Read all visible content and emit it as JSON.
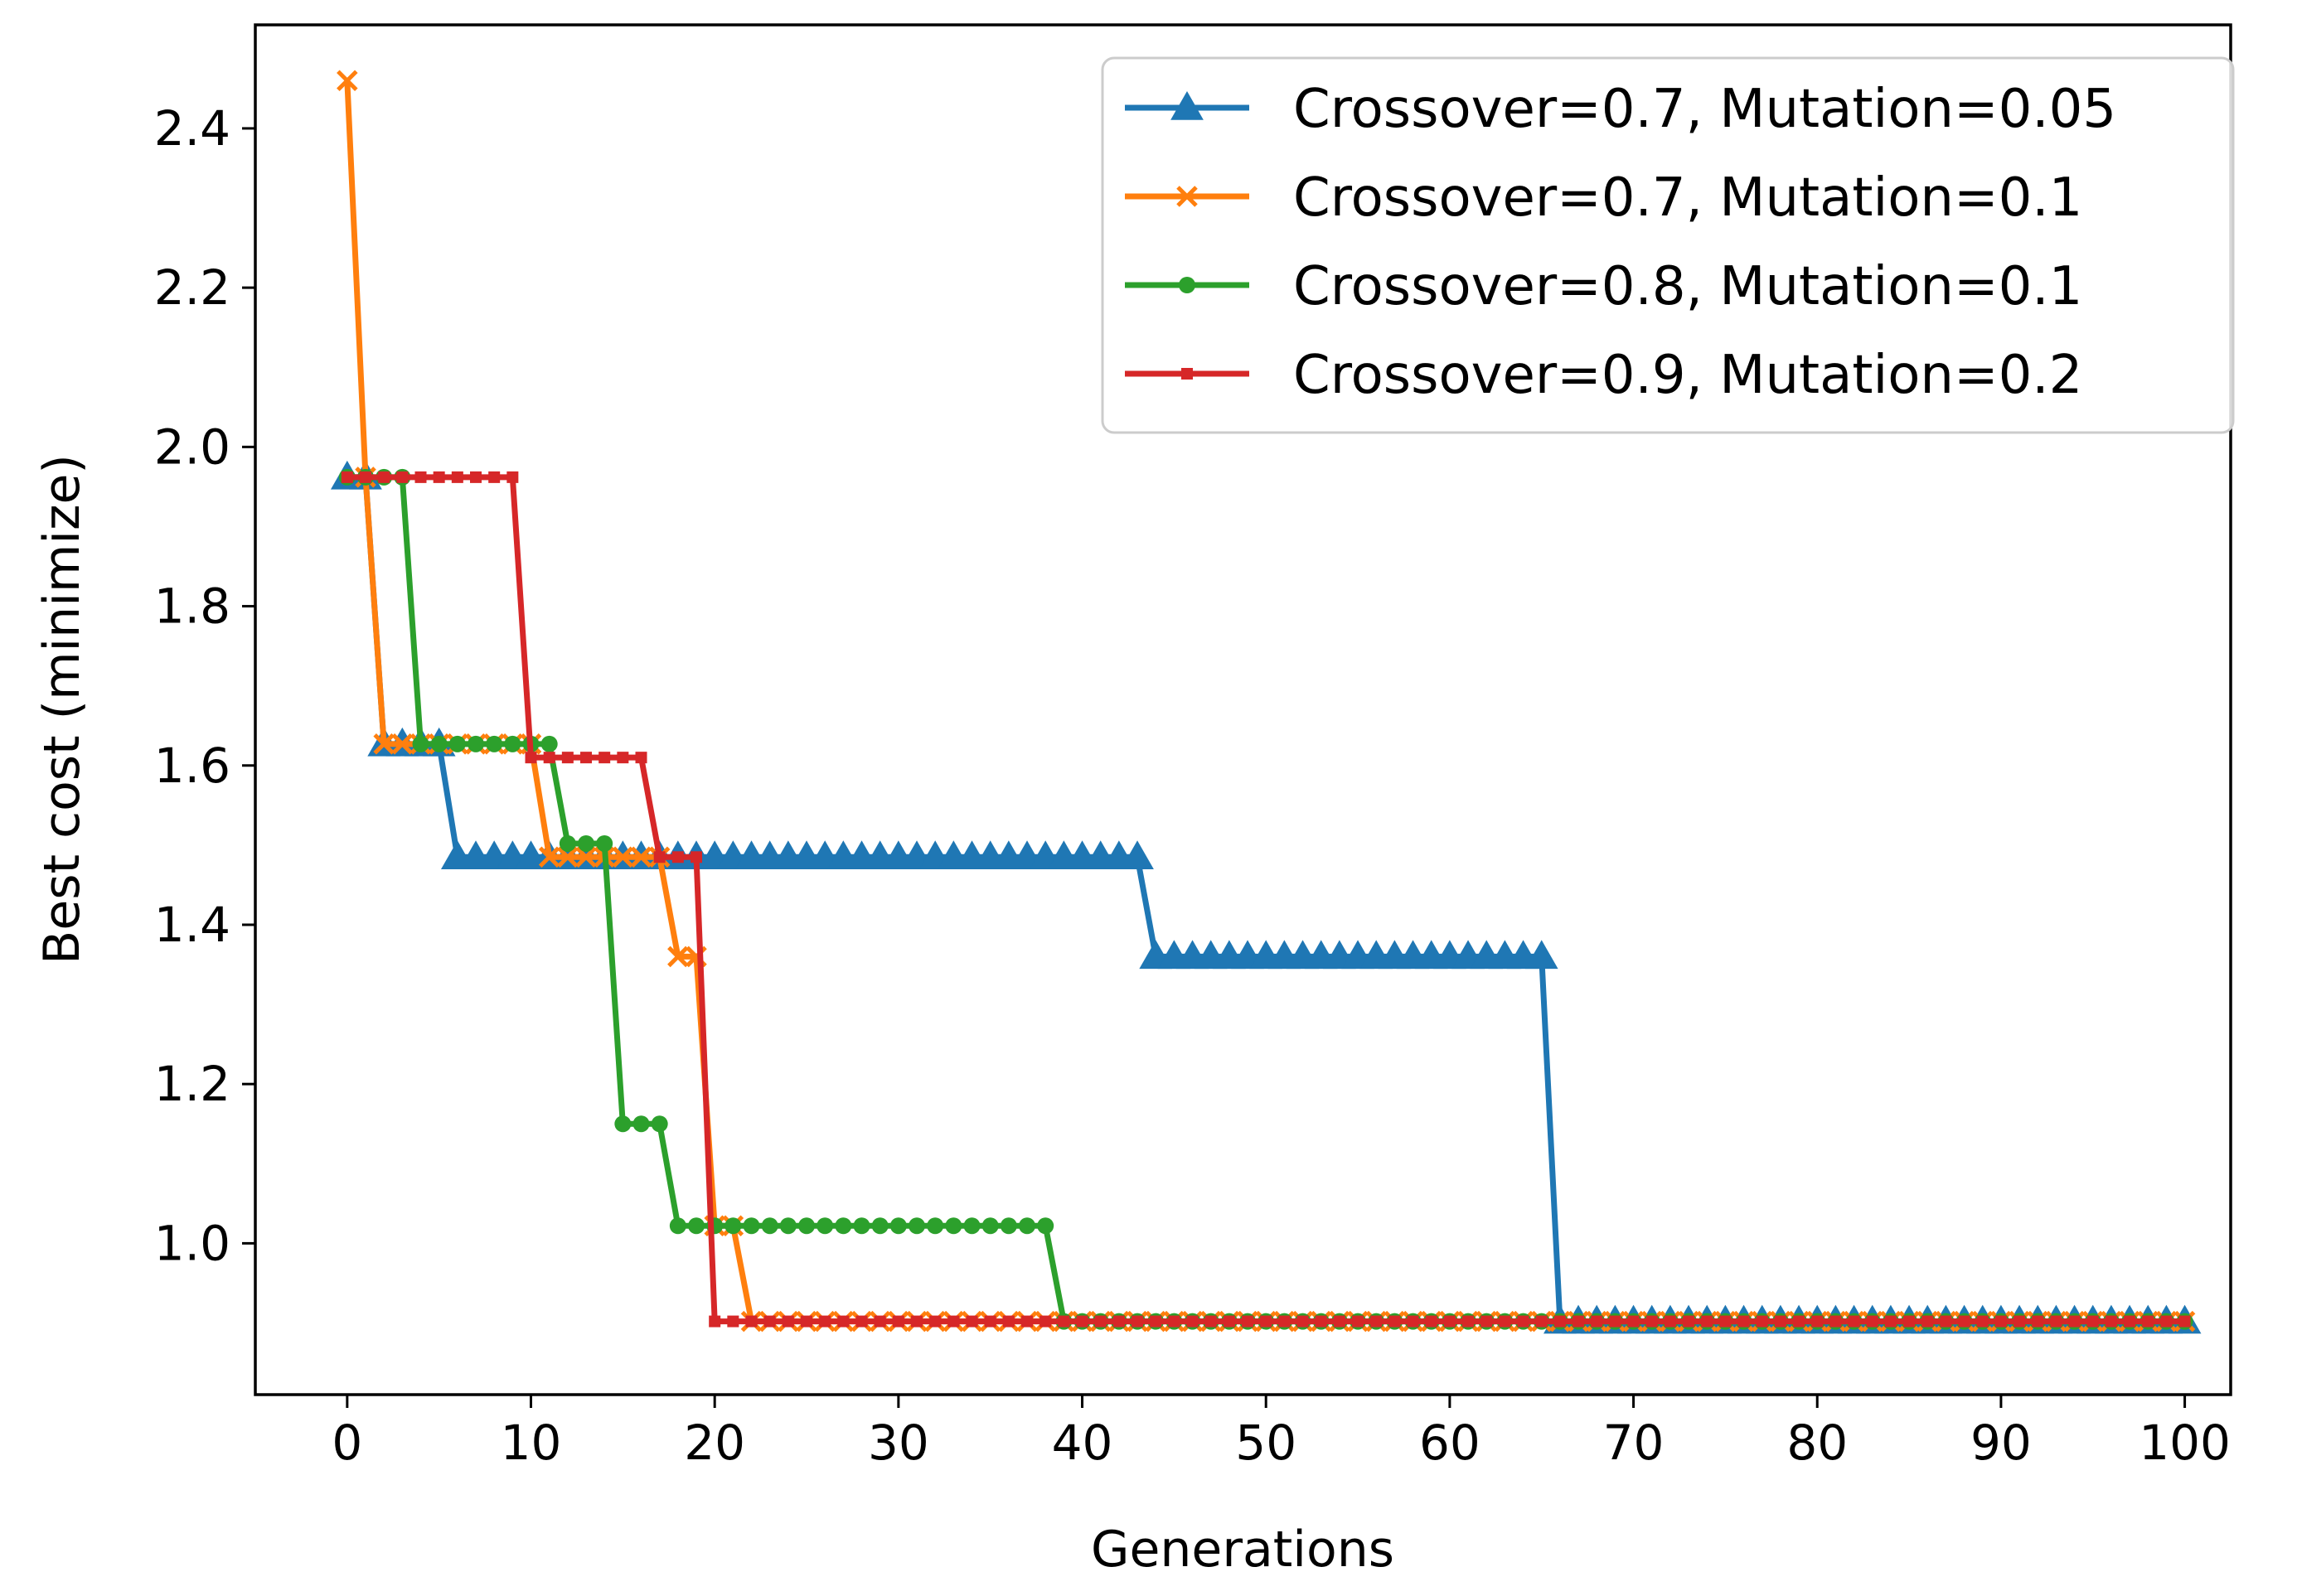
{
  "chart_data": {
    "type": "line",
    "title": "",
    "xlabel": "Generations",
    "ylabel": "Best cost (minimize)",
    "xlim": [
      -5,
      102.5
    ],
    "ylim": [
      0.81,
      2.53
    ],
    "xticks": [
      0,
      10,
      20,
      30,
      40,
      50,
      60,
      70,
      80,
      90,
      100
    ],
    "xtick_labels": [
      "0",
      "10",
      "20",
      "30",
      "40",
      "50",
      "60",
      "70",
      "80",
      "90",
      "100"
    ],
    "yticks": [
      1.0,
      1.2,
      1.4,
      1.6,
      1.8,
      2.0,
      2.2,
      2.4
    ],
    "ytick_labels": [
      "1.0",
      "1.2",
      "1.4",
      "1.6",
      "1.8",
      "2.0",
      "2.2",
      "2.4"
    ],
    "grid": false,
    "legend_position": "top-right",
    "generations": {
      "start": 0,
      "end": 100
    },
    "series": [
      {
        "name": "Crossover=0.7, Mutation=0.05",
        "color": "#1f77b4",
        "marker": "triangle",
        "steps": [
          {
            "from": 0,
            "to": 1,
            "value": 1.962
          },
          {
            "from": 2,
            "to": 5,
            "value": 1.627
          },
          {
            "from": 6,
            "to": 43,
            "value": 1.485
          },
          {
            "from": 44,
            "to": 65,
            "value": 1.36
          },
          {
            "from": 66,
            "to": 100,
            "value": 0.902
          }
        ]
      },
      {
        "name": "Crossover=0.7, Mutation=0.1",
        "color": "#ff7f0e",
        "marker": "x",
        "steps": [
          {
            "from": 0,
            "to": 0,
            "value": 2.46
          },
          {
            "from": 1,
            "to": 1,
            "value": 1.962
          },
          {
            "from": 2,
            "to": 10,
            "value": 1.627
          },
          {
            "from": 11,
            "to": 17,
            "value": 1.485
          },
          {
            "from": 18,
            "to": 19,
            "value": 1.36
          },
          {
            "from": 20,
            "to": 21,
            "value": 1.022
          },
          {
            "from": 22,
            "to": 100,
            "value": 0.902
          }
        ]
      },
      {
        "name": "Crossover=0.8, Mutation=0.1",
        "color": "#2ca02c",
        "marker": "circle",
        "steps": [
          {
            "from": 0,
            "to": 3,
            "value": 1.962
          },
          {
            "from": 4,
            "to": 11,
            "value": 1.627
          },
          {
            "from": 12,
            "to": 14,
            "value": 1.502
          },
          {
            "from": 15,
            "to": 17,
            "value": 1.15
          },
          {
            "from": 18,
            "to": 38,
            "value": 1.022
          },
          {
            "from": 39,
            "to": 100,
            "value": 0.902
          }
        ]
      },
      {
        "name": "Crossover=0.9, Mutation=0.2",
        "color": "#d62728",
        "marker": "square",
        "steps": [
          {
            "from": 0,
            "to": 9,
            "value": 1.962
          },
          {
            "from": 10,
            "to": 16,
            "value": 1.61
          },
          {
            "from": 17,
            "to": 19,
            "value": 1.485
          },
          {
            "from": 20,
            "to": 100,
            "value": 0.902
          }
        ]
      }
    ]
  }
}
